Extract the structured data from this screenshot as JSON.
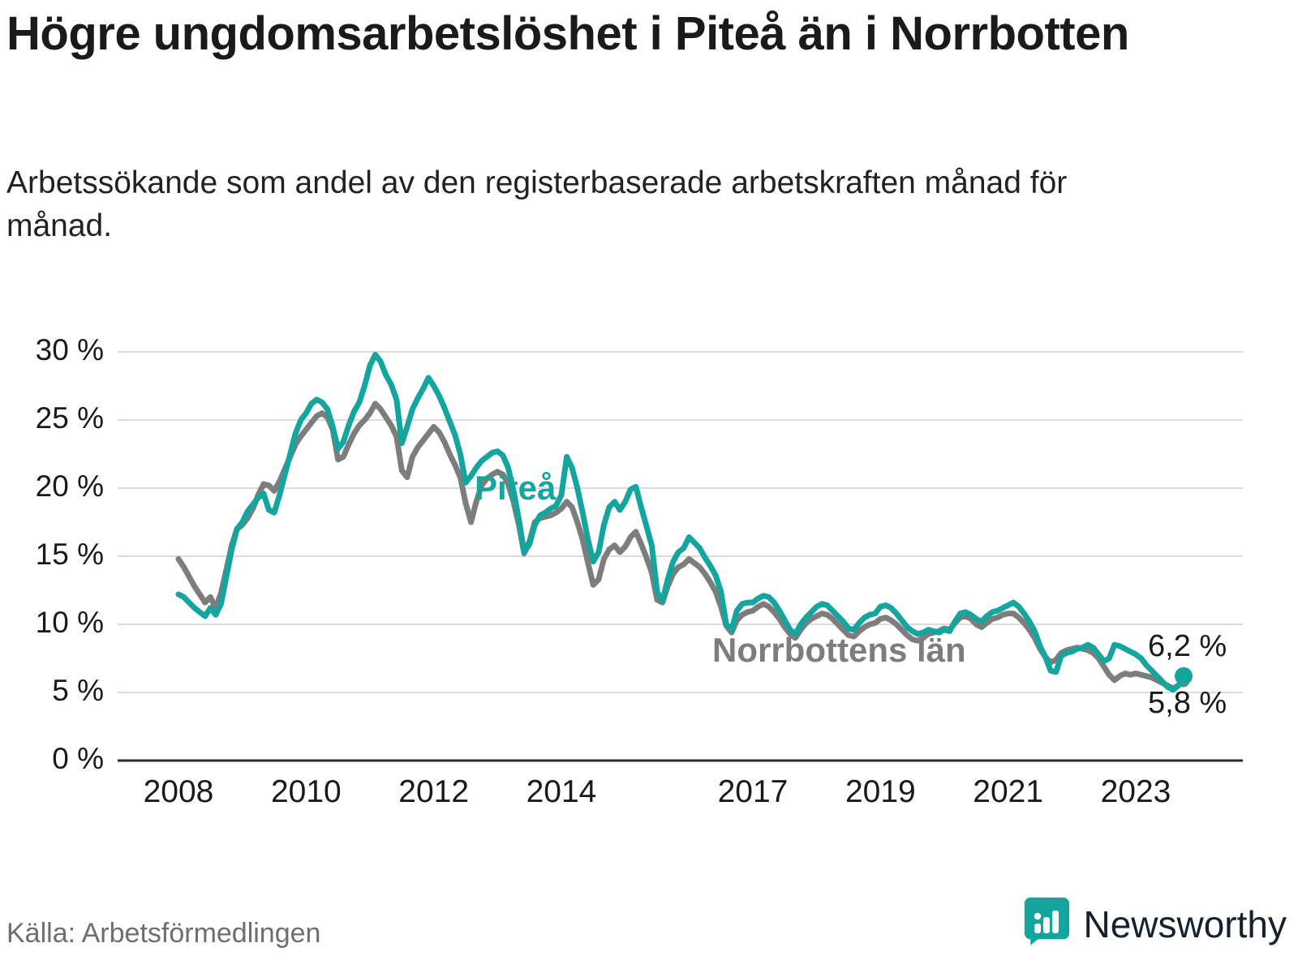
{
  "header": {
    "title": "Högre ungdomsarbetslöshet i Piteå än i Norrbotten",
    "subtitle": "Arbetssökande som andel av den registerbaserade arbetskraften månad för månad."
  },
  "footer": {
    "source": "Källa: Arbetsförmedlingen",
    "brand_name": "Newsworthy",
    "brand_color": "#13a59e"
  },
  "chart_data": {
    "type": "line",
    "title": "Högre ungdomsarbetslöshet i Piteå än i Norrbotten",
    "x_unit": "month",
    "x_start_year": 2008,
    "x_end": "2023-10",
    "ylim": [
      0,
      30
    ],
    "grid": "horizontal",
    "y_ticks": [
      {
        "value": 0,
        "label": "0 %"
      },
      {
        "value": 5,
        "label": "5 %"
      },
      {
        "value": 10,
        "label": "10 %"
      },
      {
        "value": 15,
        "label": "15 %"
      },
      {
        "value": 20,
        "label": "20 %"
      },
      {
        "value": 25,
        "label": "25 %"
      },
      {
        "value": 30,
        "label": "30 %"
      }
    ],
    "x_ticks": [
      2008,
      2010,
      2012,
      2014,
      2017,
      2019,
      2021,
      2023
    ],
    "series": [
      {
        "id": "pitea",
        "name": "Piteå",
        "color": "#13a59e",
        "end_label": "6,2 %",
        "values": [
          12.2,
          12.0,
          11.6,
          11.2,
          10.9,
          10.6,
          11.2,
          10.7,
          11.5,
          13.5,
          15.5,
          17.0,
          17.5,
          18.3,
          18.8,
          19.3,
          19.6,
          18.4,
          18.2,
          19.5,
          21.0,
          22.5,
          24.0,
          25.0,
          25.5,
          26.2,
          26.5,
          26.3,
          25.8,
          24.5,
          22.9,
          23.4,
          24.6,
          25.6,
          26.3,
          27.5,
          29.0,
          29.8,
          29.3,
          28.3,
          27.6,
          26.5,
          23.3,
          24.5,
          25.8,
          26.6,
          27.3,
          28.1,
          27.5,
          26.8,
          25.9,
          24.9,
          23.9,
          22.5,
          20.4,
          20.9,
          21.5,
          22.0,
          22.3,
          22.6,
          22.7,
          22.4,
          21.5,
          19.8,
          17.7,
          15.3,
          15.9,
          17.3,
          18.0,
          18.2,
          18.5,
          18.7,
          19.5,
          22.3,
          21.5,
          20.0,
          18.2,
          16.2,
          14.6,
          15.3,
          17.3,
          18.6,
          19.0,
          18.4,
          19.0,
          19.9,
          20.1,
          18.6,
          17.2,
          15.8,
          12.4,
          11.7,
          13.3,
          14.6,
          15.3,
          15.6,
          16.4,
          16.0,
          15.6,
          14.9,
          14.3,
          13.6,
          12.4,
          10.0,
          9.6,
          11.0,
          11.5,
          11.6,
          11.6,
          11.9,
          12.1,
          12.0,
          11.6,
          11.0,
          10.3,
          9.6,
          9.3,
          10.0,
          10.5,
          10.9,
          11.3,
          11.5,
          11.4,
          11.0,
          10.6,
          10.2,
          9.7,
          9.6,
          10.1,
          10.5,
          10.7,
          10.8,
          11.3,
          11.4,
          11.2,
          10.8,
          10.3,
          9.8,
          9.5,
          9.3,
          9.4,
          9.6,
          9.5,
          9.4,
          9.6,
          9.5,
          10.2,
          10.8,
          10.9,
          10.7,
          10.4,
          10.2,
          10.6,
          10.9,
          11.0,
          11.2,
          11.4,
          11.6,
          11.3,
          10.8,
          10.2,
          9.5,
          8.4,
          7.6,
          6.6,
          6.5,
          7.7,
          7.9,
          8.0,
          8.2,
          8.3,
          8.5,
          8.3,
          7.8,
          7.3,
          7.5,
          8.5,
          8.4,
          8.2,
          8.0,
          7.8,
          7.5,
          7.0,
          6.6,
          6.2,
          5.8,
          5.4,
          5.2,
          5.5,
          6.2
        ]
      },
      {
        "id": "norrbotten",
        "name": "Norrbottens län",
        "color": "#7d7d7d",
        "end_label": "5,8 %",
        "values": [
          14.8,
          14.2,
          13.5,
          12.8,
          12.2,
          11.6,
          12.0,
          11.2,
          12.3,
          14.0,
          15.8,
          17.0,
          17.3,
          17.8,
          18.5,
          19.5,
          20.3,
          20.2,
          19.8,
          20.5,
          21.4,
          22.3,
          23.2,
          23.8,
          24.3,
          24.8,
          25.3,
          25.5,
          25.2,
          24.3,
          22.1,
          22.3,
          23.2,
          24.0,
          24.6,
          25.0,
          25.5,
          26.2,
          25.8,
          25.2,
          24.6,
          23.8,
          21.3,
          20.8,
          22.3,
          23.0,
          23.5,
          24.0,
          24.5,
          24.1,
          23.4,
          22.5,
          21.7,
          20.8,
          18.9,
          17.5,
          19.0,
          20.2,
          20.7,
          21.0,
          21.2,
          21.0,
          20.3,
          19.0,
          17.3,
          15.2,
          16.1,
          17.5,
          17.8,
          17.9,
          18.0,
          18.2,
          18.5,
          19.0,
          18.6,
          17.5,
          16.2,
          14.5,
          12.9,
          13.3,
          14.8,
          15.5,
          15.8,
          15.3,
          15.7,
          16.4,
          16.8,
          15.9,
          14.9,
          13.8,
          11.8,
          11.6,
          12.8,
          13.7,
          14.2,
          14.4,
          14.8,
          14.5,
          14.2,
          13.7,
          13.1,
          12.4,
          11.3,
          9.9,
          9.4,
          10.3,
          10.7,
          10.9,
          11.0,
          11.3,
          11.5,
          11.3,
          10.9,
          10.4,
          9.8,
          9.3,
          9.0,
          9.6,
          10.1,
          10.4,
          10.6,
          10.8,
          10.7,
          10.4,
          10.0,
          9.6,
          9.2,
          9.1,
          9.5,
          9.8,
          10.0,
          10.1,
          10.4,
          10.5,
          10.3,
          10.0,
          9.6,
          9.2,
          8.9,
          8.8,
          9.0,
          9.3,
          9.4,
          9.5,
          9.7,
          9.6,
          10.1,
          10.5,
          10.6,
          10.4,
          10.0,
          9.8,
          10.1,
          10.4,
          10.5,
          10.7,
          10.8,
          10.8,
          10.5,
          10.1,
          9.6,
          9.0,
          8.2,
          7.6,
          7.2,
          7.4,
          7.9,
          8.1,
          8.2,
          8.3,
          8.2,
          8.1,
          7.9,
          7.5,
          6.9,
          6.3,
          5.9,
          6.2,
          6.4,
          6.3,
          6.4,
          6.3,
          6.2,
          6.1,
          5.9,
          5.7,
          5.5,
          5.3,
          5.5,
          5.8
        ]
      }
    ]
  }
}
